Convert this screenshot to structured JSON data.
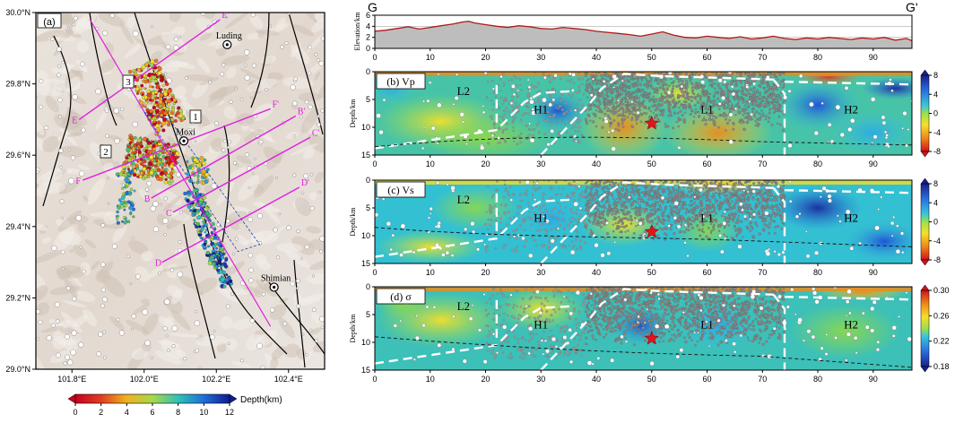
{
  "chart_data": [
    {
      "type": "scatter",
      "panel_label": "(a)",
      "subtitle": "Epicenter map with profile lines",
      "x_ticks": [
        "101.8°E",
        "102.0°E",
        "102.2°E",
        "102.4°E"
      ],
      "y_ticks": [
        "30.0°N",
        "29.8°N",
        "29.6°N",
        "29.4°N",
        "29.2°N",
        "29.0°N"
      ],
      "xlim": [
        101.7,
        102.5
      ],
      "ylim": [
        29.0,
        30.0
      ],
      "places": [
        {
          "name": "Luding",
          "lon": 102.23,
          "lat": 29.91
        },
        {
          "name": "Moxi",
          "lon": 102.11,
          "lat": 29.64
        },
        {
          "name": "Shimian",
          "lon": 102.36,
          "lat": 29.23
        }
      ],
      "profiles": [
        {
          "start": "E",
          "end": "E'",
          "start_pt": [
            101.82,
            29.7
          ],
          "end_pt": [
            102.21,
            29.98
          ]
        },
        {
          "start": "F",
          "end": "F'",
          "start_pt": [
            101.83,
            29.53
          ],
          "end_pt": [
            102.35,
            29.73
          ]
        },
        {
          "start": "B",
          "end": "B'",
          "start_pt": [
            102.02,
            29.48
          ],
          "end_pt": [
            102.42,
            29.71
          ]
        },
        {
          "start": "C",
          "end": "C'",
          "start_pt": [
            102.08,
            29.44
          ],
          "end_pt": [
            102.46,
            29.65
          ]
        },
        {
          "start": "D",
          "end": "D'",
          "start_pt": [
            102.05,
            29.3
          ],
          "end_pt": [
            102.43,
            29.51
          ]
        }
      ],
      "zones": [
        "1",
        "2",
        "3"
      ],
      "colorbar": {
        "label": "Depth(km)",
        "ticks": [
          "0",
          "2",
          "4",
          "6",
          "8",
          "10",
          "12"
        ],
        "range": [
          0,
          12
        ]
      },
      "mainshock": {
        "lon": 102.08,
        "lat": 29.59
      }
    },
    {
      "type": "line",
      "profile_start": "G",
      "profile_end": "G'",
      "ylabel": "Elevation/km",
      "y_ticks": [
        "0",
        "2",
        "4",
        "6"
      ],
      "ylim": [
        0,
        6
      ],
      "xlim": [
        0,
        97
      ],
      "x_ticks": [
        "0",
        "10",
        "20",
        "30",
        "40",
        "50",
        "60",
        "70",
        "80",
        "90"
      ],
      "x": [
        0,
        2,
        4,
        6,
        8,
        10,
        12,
        14,
        16,
        17,
        18,
        20,
        22,
        24,
        26,
        28,
        30,
        32,
        34,
        36,
        38,
        40,
        42,
        44,
        46,
        48,
        50,
        52,
        54,
        56,
        58,
        60,
        62,
        64,
        66,
        68,
        70,
        72,
        74,
        76,
        78,
        80,
        82,
        84,
        86,
        88,
        90,
        92,
        94,
        96,
        97
      ],
      "y": [
        3.1,
        3.3,
        3.6,
        3.9,
        3.5,
        3.8,
        4.1,
        4.4,
        4.8,
        4.9,
        4.6,
        4.3,
        4.0,
        3.8,
        4.1,
        3.9,
        3.6,
        3.5,
        3.8,
        3.6,
        3.4,
        3.1,
        2.9,
        2.7,
        2.5,
        2.2,
        2.6,
        3.0,
        2.4,
        2.0,
        1.9,
        2.2,
        2.0,
        1.8,
        2.1,
        1.7,
        1.9,
        2.2,
        1.8,
        1.6,
        1.9,
        1.7,
        2.0,
        1.8,
        1.6,
        1.9,
        1.7,
        2.0,
        1.5,
        1.8,
        1.4
      ]
    },
    {
      "type": "heatmap",
      "panel_label": "(b) Vp",
      "ylabel": "Depth/km",
      "y_ticks": [
        "0",
        "5",
        "10",
        "15"
      ],
      "x_ticks": [
        "0",
        "10",
        "20",
        "30",
        "40",
        "50",
        "60",
        "70",
        "80",
        "90"
      ],
      "xlim": [
        0,
        97
      ],
      "ylim": [
        0,
        15
      ],
      "regions": [
        "L2",
        "H1",
        "L1",
        "H2"
      ],
      "colorbar": {
        "ticks": [
          "8",
          "4",
          "0",
          "-4",
          "-8"
        ],
        "range": [
          -8,
          8
        ]
      },
      "mainshock": {
        "x": 50,
        "depth": 9.3
      }
    },
    {
      "type": "heatmap",
      "panel_label": "(c) Vs",
      "ylabel": "Depth/km",
      "y_ticks": [
        "0",
        "5",
        "10",
        "15"
      ],
      "x_ticks": [
        "0",
        "10",
        "20",
        "30",
        "40",
        "50",
        "60",
        "70",
        "80",
        "90"
      ],
      "xlim": [
        0,
        97
      ],
      "ylim": [
        0,
        15
      ],
      "regions": [
        "L2",
        "H1",
        "L1",
        "H2"
      ],
      "colorbar": {
        "ticks": [
          "8",
          "4",
          "0",
          "-4",
          "-8"
        ],
        "range": [
          -8,
          8
        ]
      },
      "mainshock": {
        "x": 50,
        "depth": 9.3
      }
    },
    {
      "type": "heatmap",
      "panel_label": "(d) σ",
      "ylabel": "Depth/km",
      "y_ticks": [
        "0",
        "5",
        "10",
        "15"
      ],
      "x_ticks": [
        "0",
        "10",
        "20",
        "30",
        "40",
        "50",
        "60",
        "70",
        "80",
        "90"
      ],
      "xlim": [
        0,
        97
      ],
      "ylim": [
        0,
        15
      ],
      "regions": [
        "L2",
        "H1",
        "L1",
        "H2"
      ],
      "colorbar": {
        "ticks": [
          "0.30",
          "0.26",
          "0.22",
          "0.18"
        ],
        "range": [
          0.18,
          0.3
        ]
      },
      "mainshock": {
        "x": 50,
        "depth": 9.3
      }
    }
  ]
}
